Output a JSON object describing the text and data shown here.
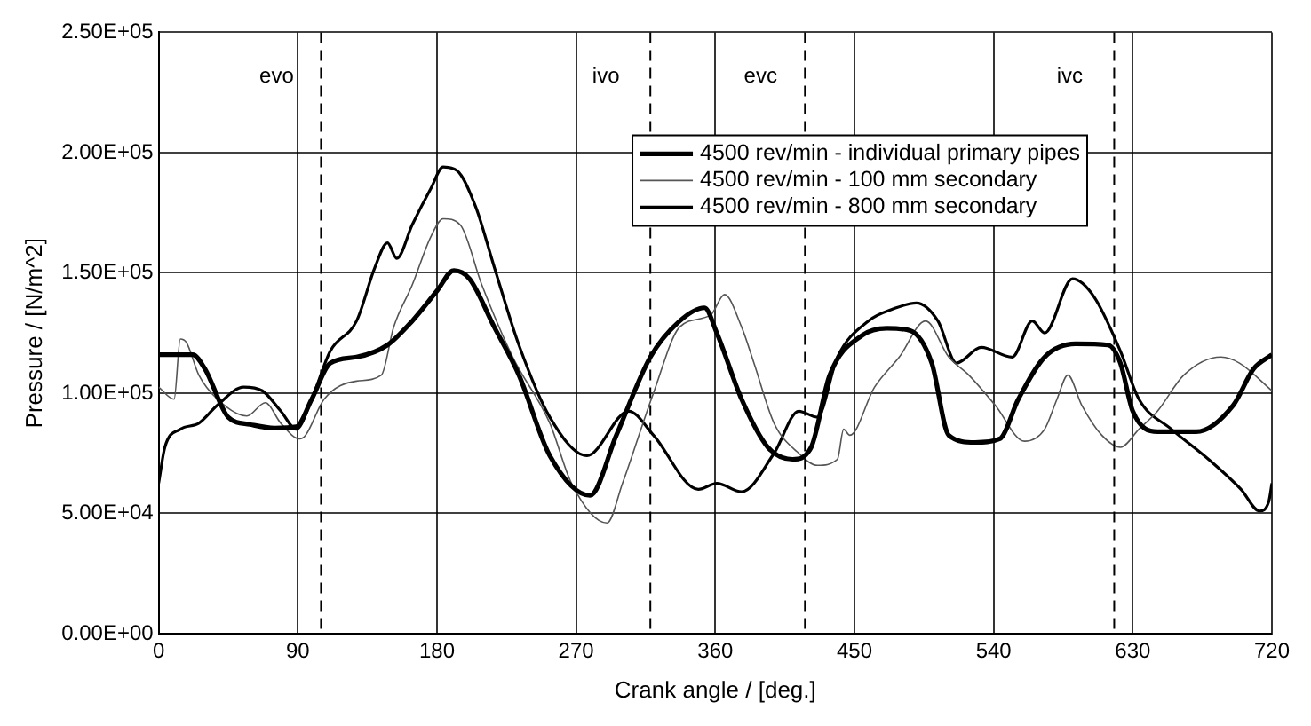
{
  "chart_data": {
    "type": "line",
    "xlabel": "Crank angle / [deg.]",
    "ylabel": "Pressure / [N/m^2]",
    "xlim": [
      0,
      720
    ],
    "xticks": [
      0,
      90,
      180,
      270,
      360,
      450,
      540,
      630,
      720
    ],
    "ylim": [
      0,
      250000
    ],
    "yticks": [
      {
        "value": 0,
        "label": "0.00E+00"
      },
      {
        "value": 50000,
        "label": "5.00E+04"
      },
      {
        "value": 100000,
        "label": "1.00E+05"
      },
      {
        "value": 150000,
        "label": "1.50E+05"
      },
      {
        "value": 200000,
        "label": "2.00E+05"
      },
      {
        "value": 250000,
        "label": "2.50E+05"
      }
    ],
    "grid": true,
    "legend": "top right",
    "marker": "none",
    "line_style": "solid",
    "ref_lines": [
      {
        "axis": "x",
        "value": 105,
        "label": "evo",
        "line_style": "dashed",
        "color": "#000000"
      },
      {
        "axis": "x",
        "value": 318,
        "label": "ivo",
        "line_style": "dashed",
        "color": "#000000"
      },
      {
        "axis": "x",
        "value": 418,
        "label": "evc",
        "line_style": "dashed",
        "color": "#000000"
      },
      {
        "axis": "x",
        "value": 618,
        "label": "ivc",
        "line_style": "dashed",
        "color": "#000000"
      }
    ],
    "series": [
      {
        "name": "4500 rev/min - individual primary pipes",
        "color": "#000000",
        "x": [
          0,
          22,
          30,
          45,
          59,
          75,
          89,
          99,
          111,
          128,
          148,
          164,
          180,
          191,
          201,
          217,
          233,
          253,
          279,
          296,
          318,
          337,
          353,
          361,
          377,
          394,
          410,
          422,
          434,
          455,
          471,
          486,
          500,
          511,
          528,
          544,
          556,
          573,
          593,
          614,
          622,
          630,
          646,
          671,
          695,
          708,
          720
        ],
        "values": [
          116000,
          116000,
          110000,
          90000,
          87000,
          85500,
          86000,
          97500,
          112500,
          115000,
          120000,
          130000,
          142500,
          151000,
          147500,
          127500,
          107500,
          74000,
          57500,
          82500,
          115000,
          130000,
          135500,
          125000,
          97500,
          77500,
          72500,
          77500,
          107500,
          124000,
          127000,
          126000,
          112500,
          82500,
          79500,
          81000,
          97500,
          115000,
          120500,
          120000,
          112500,
          92500,
          84000,
          84000,
          95000,
          110000,
          116000
        ]
      },
      {
        "name": "4500 rev/min - 100 mm secondary",
        "color": "#555555",
        "x": [
          0,
          10,
          14,
          18,
          26,
          38,
          57,
          69,
          79,
          91,
          95,
          107,
          128,
          144,
          152,
          164,
          176,
          184,
          195,
          209,
          229,
          253,
          267,
          290,
          300,
          320,
          337,
          357,
          366,
          377,
          385,
          398,
          414,
          426,
          439,
          443,
          447,
          463,
          479,
          496,
          511,
          524,
          541,
          560,
          573,
          581,
          588,
          597,
          610,
          622,
          634,
          646,
          663,
          687,
          699,
          720
        ],
        "values": [
          102500,
          97500,
          122500,
          121000,
          107500,
          97500,
          90500,
          96000,
          87500,
          81000,
          82500,
          97500,
          105000,
          107500,
          127500,
          145000,
          165000,
          172500,
          170000,
          145000,
          115000,
          87500,
          62500,
          46000,
          62500,
          100000,
          127500,
          132500,
          141000,
          127500,
          112500,
          87500,
          75000,
          70000,
          72500,
          85000,
          82500,
          102500,
          115000,
          130000,
          115000,
          107500,
          95000,
          80000,
          85000,
          97500,
          107500,
          95000,
          82500,
          77500,
          85000,
          92500,
          107500,
          115000,
          112500,
          101000
        ]
      },
      {
        "name": "4500 rev/min - 800 mm secondary",
        "color": "#000000",
        "x": [
          0,
          4,
          14,
          26,
          38,
          55,
          67,
          79,
          89,
          99,
          111,
          128,
          140,
          148,
          154,
          164,
          176,
          184,
          193,
          205,
          217,
          233,
          253,
          277,
          304,
          320,
          349,
          361,
          377,
          398,
          414,
          426,
          439,
          459,
          475,
          490,
          504,
          516,
          532,
          552,
          565,
          573,
          591,
          605,
          622,
          634,
          655,
          679,
          700,
          712,
          718,
          720
        ],
        "values": [
          62500,
          77500,
          85000,
          87500,
          95000,
          102500,
          101000,
          92500,
          85000,
          97500,
          117500,
          130000,
          152500,
          162500,
          156000,
          170000,
          185000,
          194000,
          192500,
          177500,
          152500,
          120000,
          90000,
          74000,
          92500,
          82500,
          60000,
          62500,
          59000,
          75000,
          92500,
          90000,
          115000,
          130000,
          135000,
          137500,
          130000,
          112500,
          119000,
          115000,
          130000,
          125000,
          147500,
          140000,
          117500,
          97500,
          85000,
          72500,
          60000,
          51000,
          55000,
          62500
        ]
      }
    ]
  }
}
